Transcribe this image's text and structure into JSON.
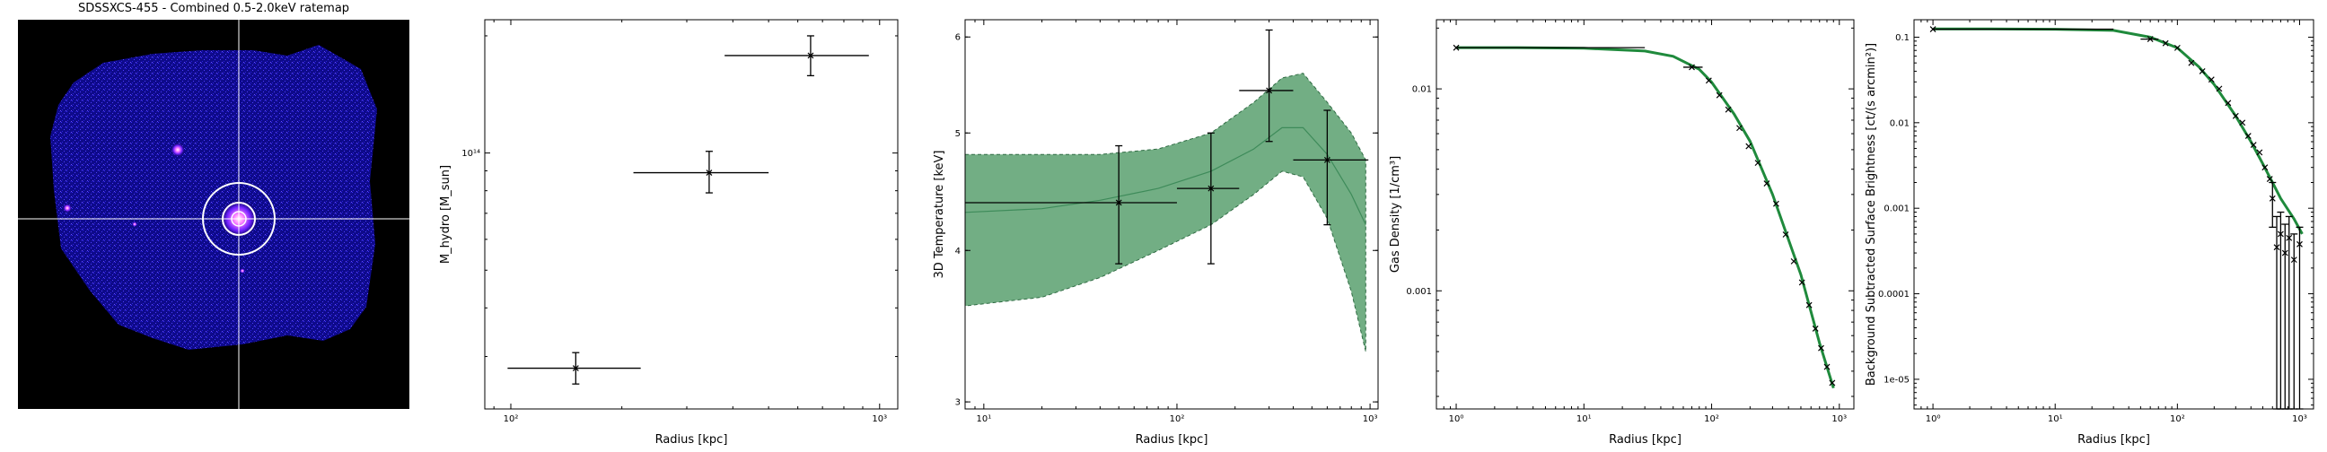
{
  "ratemap": {
    "title": "SDSSXCS-455 - Combined 0.5-2.0keV ratemap"
  },
  "chart_data": [
    {
      "type": "scatter",
      "name": "mass",
      "xlabel": "Radius [kpc]",
      "ylabel": "M_hydro [M_sun]",
      "xscale": "log",
      "yscale": "log",
      "xlim": [
        85,
        1120
      ],
      "ylim": [
        22000000000000,
        220000000000000
      ],
      "xticks": [
        {
          "v": 100,
          "t": "10²"
        },
        {
          "v": 1000,
          "t": "10³"
        }
      ],
      "yticks": [
        {
          "v": 100000000000000,
          "t": "10¹⁴"
        }
      ],
      "points": [
        {
          "x": 150,
          "y": 28000000000000,
          "xlo": 98,
          "xhi": 225,
          "ylo": 25500000000000,
          "yhi": 30700000000000
        },
        {
          "x": 345,
          "y": 89000000000000,
          "xlo": 215,
          "xhi": 500,
          "ylo": 79000000000000,
          "yhi": 101000000000000
        },
        {
          "x": 650,
          "y": 178000000000000,
          "xlo": 380,
          "xhi": 935,
          "ylo": 158000000000000,
          "yhi": 200000000000000
        }
      ]
    },
    {
      "type": "line",
      "name": "temperature",
      "xlabel": "Radius [kpc]",
      "ylabel": "3D Temperature [keV]",
      "xscale": "log",
      "yscale": "log",
      "xlim": [
        8,
        1100
      ],
      "ylim": [
        2.96,
        6.2
      ],
      "xticks": [
        {
          "v": 10,
          "t": "10¹"
        },
        {
          "v": 100,
          "t": "10²"
        },
        {
          "v": 1000,
          "t": "10³"
        }
      ],
      "yticks": [
        {
          "v": 3,
          "t": "3"
        },
        {
          "v": 4,
          "t": "4"
        },
        {
          "v": 5,
          "t": "5"
        },
        {
          "v": 6,
          "t": "6"
        }
      ],
      "model": {
        "color": "#59a06f",
        "x": [
          8,
          20,
          40,
          80,
          150,
          250,
          350,
          450,
          600,
          800,
          950
        ],
        "y": [
          4.3,
          4.33,
          4.4,
          4.5,
          4.65,
          4.85,
          5.05,
          5.05,
          4.8,
          4.45,
          4.2
        ],
        "lo": [
          3.6,
          3.66,
          3.8,
          4.0,
          4.2,
          4.45,
          4.65,
          4.6,
          4.25,
          3.7,
          3.3
        ],
        "hi": [
          4.8,
          4.8,
          4.8,
          4.85,
          5.0,
          5.3,
          5.55,
          5.6,
          5.3,
          5.0,
          4.75
        ]
      },
      "points": [
        {
          "x": 50,
          "y": 4.38,
          "xlo": 8,
          "xhi": 100,
          "ylo": 3.9,
          "yhi": 4.88
        },
        {
          "x": 150,
          "y": 4.5,
          "xlo": 100,
          "xhi": 210,
          "ylo": 3.9,
          "yhi": 5.0
        },
        {
          "x": 300,
          "y": 5.42,
          "xlo": 210,
          "xhi": 400,
          "ylo": 4.92,
          "yhi": 6.08
        },
        {
          "x": 600,
          "y": 4.75,
          "xlo": 400,
          "xhi": 980,
          "ylo": 4.2,
          "yhi": 5.22
        }
      ]
    },
    {
      "type": "line",
      "name": "density",
      "xlabel": "Radius [kpc]",
      "ylabel": "Gas Density [1/cm³]",
      "xscale": "log",
      "yscale": "log",
      "xlim": [
        0.7,
        1300
      ],
      "ylim": [
        0.00026,
        0.022
      ],
      "xticks": [
        {
          "v": 1,
          "t": "10⁰"
        },
        {
          "v": 10,
          "t": "10¹"
        },
        {
          "v": 100,
          "t": "10²"
        },
        {
          "v": 1000,
          "t": "10³"
        }
      ],
      "yticks": [
        {
          "v": 0.001,
          "t": "0.001"
        },
        {
          "v": 0.01,
          "t": "0.01"
        }
      ],
      "model": {
        "color": "#1f8a3c",
        "x": [
          1,
          3,
          10,
          30,
          50,
          80,
          100,
          150,
          200,
          300,
          500,
          700,
          900
        ],
        "y": [
          0.016,
          0.016,
          0.0159,
          0.0154,
          0.0145,
          0.0125,
          0.0108,
          0.0075,
          0.0055,
          0.003,
          0.0012,
          0.00055,
          0.00033
        ]
      },
      "points": [
        {
          "x": 1,
          "y": 0.016,
          "xlo": 1,
          "xhi": 30
        },
        {
          "x": 70,
          "y": 0.0128,
          "xlo": 60,
          "xhi": 85
        },
        {
          "x": 95,
          "y": 0.011
        },
        {
          "x": 115,
          "y": 0.0093
        },
        {
          "x": 135,
          "y": 0.0079
        },
        {
          "x": 165,
          "y": 0.0064
        },
        {
          "x": 195,
          "y": 0.0052
        },
        {
          "x": 230,
          "y": 0.0043
        },
        {
          "x": 270,
          "y": 0.0034
        },
        {
          "x": 320,
          "y": 0.0027
        },
        {
          "x": 380,
          "y": 0.0019
        },
        {
          "x": 440,
          "y": 0.0014
        },
        {
          "x": 510,
          "y": 0.0011
        },
        {
          "x": 580,
          "y": 0.00085
        },
        {
          "x": 650,
          "y": 0.00065
        },
        {
          "x": 720,
          "y": 0.00052
        },
        {
          "x": 800,
          "y": 0.00042
        },
        {
          "x": 880,
          "y": 0.00035
        }
      ]
    },
    {
      "type": "line",
      "name": "surface_brightness",
      "xlabel": "Radius [kpc]",
      "ylabel": "Background Subtracted Surface Brightness [ct/(s arcmin²)]",
      "xscale": "log",
      "yscale": "log",
      "xlim": [
        0.7,
        1300
      ],
      "ylim": [
        4.5e-06,
        0.16
      ],
      "xticks": [
        {
          "v": 1,
          "t": "10⁰"
        },
        {
          "v": 10,
          "t": "10¹"
        },
        {
          "v": 100,
          "t": "10²"
        },
        {
          "v": 1000,
          "t": "10³"
        }
      ],
      "yticks": [
        {
          "v": 1e-05,
          "t": "1e-05"
        },
        {
          "v": 0.0001,
          "t": "0.0001"
        },
        {
          "v": 0.001,
          "t": "0.001"
        },
        {
          "v": 0.01,
          "t": "0.01"
        },
        {
          "v": 0.1,
          "t": "0.1"
        }
      ],
      "model": {
        "color": "#1f8a3c",
        "x": [
          1,
          3,
          10,
          30,
          60,
          100,
          150,
          200,
          300,
          400,
          500,
          600,
          700,
          900,
          1050
        ],
        "y": [
          0.125,
          0.125,
          0.124,
          0.12,
          0.1,
          0.075,
          0.045,
          0.028,
          0.012,
          0.006,
          0.0033,
          0.002,
          0.0013,
          0.00075,
          0.0005
        ]
      },
      "points": [
        {
          "x": 1,
          "y": 0.124,
          "xlo": 1,
          "xhi": 30
        },
        {
          "x": 60,
          "y": 0.095,
          "xlo": 50,
          "xhi": 70
        },
        {
          "x": 80,
          "y": 0.085
        },
        {
          "x": 100,
          "y": 0.075
        },
        {
          "x": 130,
          "y": 0.05
        },
        {
          "x": 160,
          "y": 0.04
        },
        {
          "x": 190,
          "y": 0.032
        },
        {
          "x": 220,
          "y": 0.025
        },
        {
          "x": 260,
          "y": 0.017
        },
        {
          "x": 300,
          "y": 0.012
        },
        {
          "x": 340,
          "y": 0.01
        },
        {
          "x": 380,
          "y": 0.007
        },
        {
          "x": 420,
          "y": 0.0055
        },
        {
          "x": 470,
          "y": 0.0045
        },
        {
          "x": 520,
          "y": 0.003
        },
        {
          "x": 570,
          "y": 0.0022
        },
        {
          "x": 600,
          "y": 0.0013,
          "ylo": 0.0006,
          "yhi": 0.002
        },
        {
          "x": 650,
          "y": 0.00035,
          "ylo": 3e-06,
          "yhi": 0.0008
        },
        {
          "x": 700,
          "y": 0.0005,
          "ylo": 3e-06,
          "yhi": 0.0009
        },
        {
          "x": 760,
          "y": 0.0003,
          "ylo": 3e-06,
          "yhi": 0.00065
        },
        {
          "x": 820,
          "y": 0.00045,
          "ylo": 3e-06,
          "yhi": 0.0008
        },
        {
          "x": 900,
          "y": 0.00025,
          "ylo": 3e-06,
          "yhi": 0.0005
        },
        {
          "x": 1000,
          "y": 0.00038,
          "ylo": 3e-06,
          "yhi": 0.0006
        }
      ]
    }
  ]
}
